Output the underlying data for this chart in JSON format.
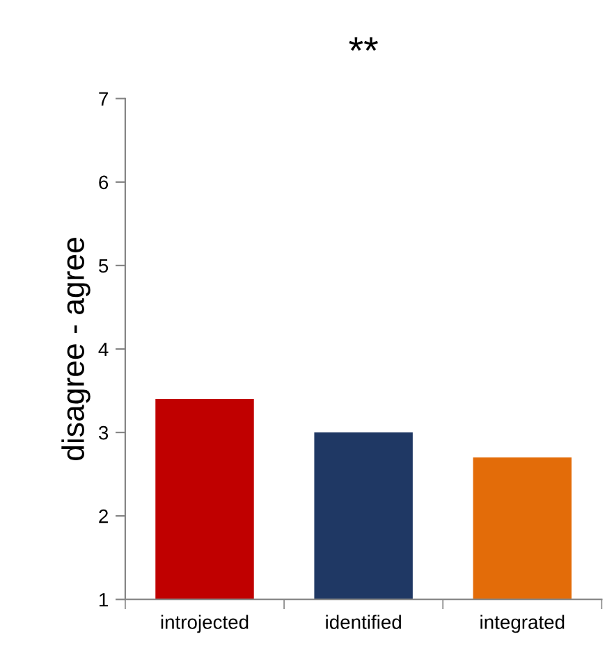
{
  "chart_data": {
    "type": "bar",
    "title": "**",
    "ylabel": "disagree - agree",
    "categories": [
      "introjected",
      "identified",
      "integrated"
    ],
    "values": [
      3.4,
      3.0,
      2.7
    ],
    "colors": [
      "#c00000",
      "#1f3864",
      "#e36c09"
    ],
    "ylim": [
      1,
      7
    ],
    "yticks": [
      1,
      2,
      3,
      4,
      5,
      6,
      7
    ],
    "grid": false
  }
}
